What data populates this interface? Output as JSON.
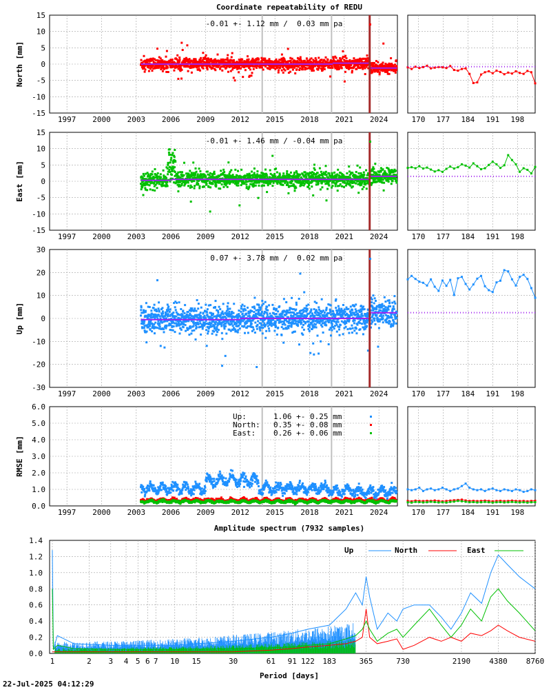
{
  "title": "Coordinate repeatability of REDU",
  "footer_timestamp": "22-Jul-2025 04:12:29",
  "colors": {
    "north": "#ff0000",
    "east": "#00c000",
    "up": "#1e90ff",
    "model": "#a020f0",
    "offset_line": "#a52a2a",
    "event_line": "#c0c0c0",
    "grid": "#a0a0a0"
  },
  "time_ticks": [
    "1997",
    "2000",
    "2003",
    "2006",
    "2009",
    "2012",
    "2015",
    "2018",
    "2021",
    "2024"
  ],
  "recent_ticks": [
    "170",
    "177",
    "184",
    "191",
    "198"
  ],
  "chart_data": [
    {
      "type": "scatter",
      "name": "north",
      "ylabel": "North [mm]",
      "stats": "-0.01 +- 1.12 mm /  0.03 mm pa",
      "xlim": [
        1995.5,
        2025.6
      ],
      "ylim": [
        -15,
        15
      ],
      "yticks": [
        "15",
        "10",
        "5",
        "0",
        "-5",
        "-10",
        "-15"
      ],
      "data_start": 2003.4,
      "data_end": 2025.55,
      "scatter_sd": 1.12,
      "offset_epoch": 2023.2,
      "event_epochs": [
        2013.9,
        2019.9
      ],
      "model_levels": [
        [
          2003.4,
          0.0
        ],
        [
          2020.0,
          0.3
        ],
        [
          2023.2,
          -1.2
        ]
      ],
      "recent_xlim": [
        167,
        203
      ],
      "recent_model": -0.8,
      "recent_values": [
        -1.0,
        -1.5,
        -0.8,
        -1.2,
        -0.9,
        -0.5,
        -1.3,
        -1.1,
        -0.9,
        -1.0,
        -1.2,
        -0.6,
        -1.8,
        -2.0,
        -1.5,
        -1.3,
        -3.0,
        -5.8,
        -5.6,
        -3.2,
        -2.5,
        -2.2,
        -2.8,
        -2.0,
        -2.4,
        -3.1,
        -2.6,
        -2.9,
        -2.2,
        -2.7,
        -3.0,
        -2.1,
        -2.5,
        -5.9
      ]
    },
    {
      "type": "scatter",
      "name": "east",
      "ylabel": "East [mm]",
      "stats": "-0.01 +- 1.46 mm / -0.04 mm pa",
      "xlim": [
        1995.5,
        2025.6
      ],
      "ylim": [
        -15,
        15
      ],
      "yticks": [
        "15",
        "10",
        "5",
        "0",
        "-5",
        "-10",
        "-15"
      ],
      "data_start": 2003.4,
      "data_end": 2025.55,
      "scatter_sd": 1.46,
      "offset_epoch": 2023.2,
      "event_epochs": [
        2013.9,
        2019.9
      ],
      "model_levels": [
        [
          2003.4,
          0.3
        ],
        [
          2006.0,
          0.6
        ],
        [
          2023.2,
          1.5
        ]
      ],
      "recent_xlim": [
        167,
        203
      ],
      "recent_model": 1.5,
      "recent_values": [
        4.1,
        4.3,
        4.0,
        4.6,
        3.9,
        4.2,
        3.6,
        3.0,
        3.4,
        2.9,
        3.8,
        4.5,
        3.9,
        4.3,
        5.2,
        4.8,
        4.2,
        5.5,
        4.6,
        3.7,
        4.0,
        5.0,
        6.0,
        5.2,
        4.1,
        4.9,
        8.0,
        6.5,
        5.2,
        2.9,
        4.0,
        3.5,
        2.4,
        4.4
      ]
    },
    {
      "type": "scatter",
      "name": "up",
      "ylabel": "Up [mm]",
      "stats": " 0.07 +- 3.78 mm /  0.02 mm pa",
      "xlim": [
        1995.5,
        2025.6
      ],
      "ylim": [
        -30,
        30
      ],
      "yticks": [
        "30",
        "20",
        "10",
        "0",
        "-10",
        "-20",
        "-30"
      ],
      "data_start": 2003.4,
      "data_end": 2025.55,
      "scatter_sd": 3.78,
      "offset_epoch": 2023.2,
      "event_epochs": [
        2013.9,
        2019.9
      ],
      "model_levels": [
        [
          2003.4,
          -0.5
        ],
        [
          2012.0,
          0.0
        ],
        [
          2023.2,
          2.5
        ]
      ],
      "recent_xlim": [
        167,
        203
      ],
      "recent_model": 2.5,
      "recent_values": [
        17.0,
        18.5,
        17.2,
        16.0,
        15.5,
        14.3,
        17.0,
        13.8,
        12.0,
        16.5,
        14.2,
        16.8,
        10.2,
        17.5,
        18.1,
        15.0,
        12.6,
        14.8,
        17.3,
        18.5,
        14.0,
        12.3,
        11.5,
        15.7,
        16.4,
        21.0,
        20.5,
        17.0,
        14.3,
        18.1,
        19.0,
        17.2,
        13.2,
        9.0
      ]
    },
    {
      "type": "scatter",
      "name": "rmse",
      "ylabel": "RMSE [mm]",
      "xlim": [
        1995.5,
        2025.6
      ],
      "ylim": [
        0,
        6
      ],
      "yticks": [
        "6.0",
        "5.0",
        "4.0",
        "3.0",
        "2.0",
        "1.0",
        "0.0"
      ],
      "data_start": 2003.4,
      "data_end": 2025.55,
      "event_epochs": [
        2013.9,
        2019.9
      ],
      "legend": [
        {
          "label": "Up:",
          "stats": "1.06 +- 0.25 mm"
        },
        {
          "label": "North:",
          "stats": "0.35 +- 0.08 mm"
        },
        {
          "label": "East:",
          "stats": "0.26 +- 0.06 mm"
        }
      ],
      "series_mean": {
        "up": 1.06,
        "north": 0.35,
        "east": 0.26
      },
      "recent_xlim": [
        167,
        203
      ],
      "recent_values": {
        "up": [
          1.0,
          0.95,
          1.0,
          1.1,
          0.9,
          1.0,
          1.05,
          0.95,
          1.0,
          1.1,
          1.0,
          0.9,
          1.0,
          1.05,
          1.2,
          1.35,
          1.1,
          1.0,
          0.95,
          1.0,
          0.9,
          1.0,
          1.05,
          0.95,
          0.9,
          1.0,
          0.95,
          0.9,
          1.0,
          0.95,
          0.85,
          0.9,
          1.0,
          0.95
        ],
        "north": [
          0.3,
          0.28,
          0.32,
          0.3,
          0.29,
          0.31,
          0.3,
          0.33,
          0.3,
          0.28,
          0.3,
          0.32,
          0.34,
          0.36,
          0.38,
          0.33,
          0.3,
          0.31,
          0.29,
          0.3,
          0.32,
          0.3,
          0.28,
          0.3,
          0.31,
          0.29,
          0.3,
          0.32,
          0.3,
          0.29,
          0.3,
          0.28,
          0.3,
          0.31
        ],
        "east": [
          0.22,
          0.2,
          0.24,
          0.23,
          0.21,
          0.22,
          0.25,
          0.23,
          0.21,
          0.22,
          0.2,
          0.24,
          0.26,
          0.3,
          0.28,
          0.25,
          0.22,
          0.23,
          0.21,
          0.22,
          0.24,
          0.22,
          0.2,
          0.22,
          0.23,
          0.21,
          0.22,
          0.24,
          0.22,
          0.21,
          0.22,
          0.2,
          0.22,
          0.23
        ]
      }
    },
    {
      "type": "line",
      "name": "spectrum",
      "title": "Amplitude spectrum (7932 samples)",
      "xlabel": "Period [days]",
      "ylim": [
        0,
        1.4
      ],
      "yticks": [
        "1.4",
        "1.2",
        "1.0",
        "0.8",
        "0.6",
        "0.4",
        "0.2",
        "0.0"
      ],
      "xlim_days": [
        0.95,
        8760
      ],
      "xticks_days": [
        1,
        2,
        3,
        4,
        5,
        6,
        7,
        10,
        15,
        30,
        61,
        91,
        122,
        183,
        365,
        730,
        2190,
        4380,
        8760
      ],
      "legend": [
        "Up",
        "North",
        "East"
      ],
      "series": [
        {
          "name": "Up",
          "x": [
            1.0,
            1.02,
            1.1,
            1.5,
            3,
            10,
            30,
            61,
            91,
            122,
            183,
            250,
            300,
            340,
            365,
            390,
            450,
            550,
            650,
            730,
            900,
            1200,
            1500,
            1800,
            2190,
            2600,
            3200,
            3800,
            4380,
            5200,
            6500,
            8760
          ],
          "y": [
            1.28,
            0.05,
            0.22,
            0.12,
            0.1,
            0.1,
            0.15,
            0.2,
            0.25,
            0.3,
            0.35,
            0.55,
            0.75,
            0.6,
            0.95,
            0.7,
            0.3,
            0.5,
            0.4,
            0.55,
            0.6,
            0.6,
            0.45,
            0.3,
            0.5,
            0.75,
            0.62,
            1.0,
            1.22,
            1.1,
            0.95,
            0.8
          ]
        },
        {
          "name": "North",
          "x": [
            1.0,
            30,
            61,
            91,
            122,
            183,
            250,
            300,
            340,
            365,
            390,
            450,
            550,
            650,
            730,
            900,
            1200,
            1500,
            1800,
            2190,
            2600,
            3200,
            3800,
            4380,
            5200,
            6500,
            8760
          ],
          "y": [
            0.02,
            0.02,
            0.04,
            0.06,
            0.08,
            0.1,
            0.12,
            0.15,
            0.2,
            0.55,
            0.2,
            0.12,
            0.15,
            0.18,
            0.05,
            0.1,
            0.2,
            0.15,
            0.2,
            0.15,
            0.25,
            0.22,
            0.28,
            0.35,
            0.28,
            0.2,
            0.15
          ]
        },
        {
          "name": "East",
          "x": [
            1.0,
            1.02,
            1.1,
            1.5,
            3,
            10,
            30,
            61,
            91,
            122,
            183,
            250,
            300,
            340,
            365,
            390,
            450,
            550,
            650,
            730,
            900,
            1200,
            1500,
            1800,
            2190,
            2600,
            3200,
            3800,
            4380,
            5200,
            6500,
            8760
          ],
          "y": [
            0.8,
            0.05,
            0.1,
            0.06,
            0.05,
            0.05,
            0.06,
            0.07,
            0.08,
            0.1,
            0.12,
            0.18,
            0.22,
            0.3,
            0.4,
            0.3,
            0.15,
            0.25,
            0.3,
            0.2,
            0.35,
            0.55,
            0.35,
            0.2,
            0.35,
            0.55,
            0.4,
            0.7,
            0.8,
            0.65,
            0.5,
            0.28
          ]
        }
      ]
    }
  ]
}
